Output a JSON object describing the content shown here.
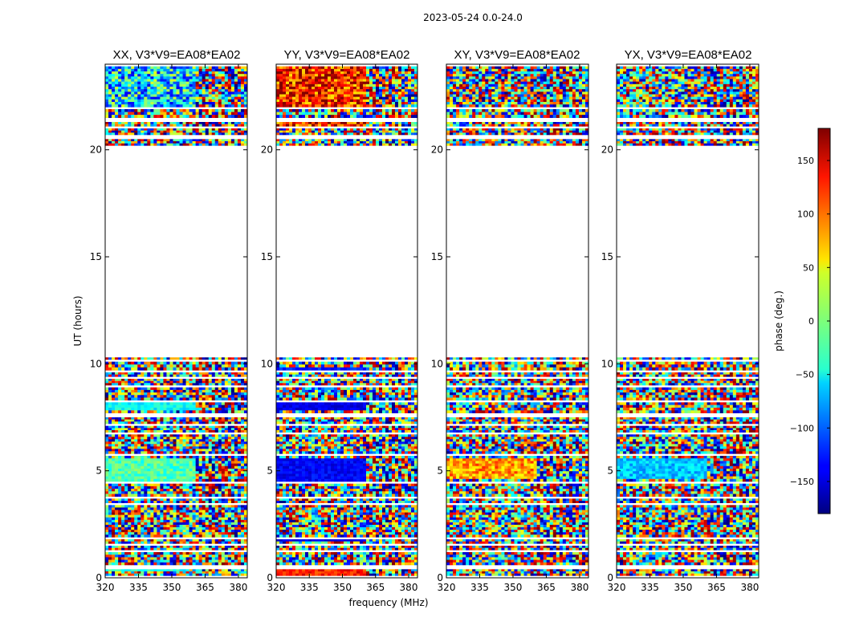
{
  "figure": {
    "suptitle": "2023-05-24 0.0-24.0"
  },
  "chart_data": {
    "type": "heatmap",
    "title": "2023-05-24 0.0-24.0",
    "xlabel": "frequency (MHz)",
    "ylabel": "UT (hours)",
    "xlim": [
      320,
      384
    ],
    "ylim": [
      0,
      24
    ],
    "x_ticks": [
      320,
      335,
      350,
      365,
      380
    ],
    "y_ticks": [
      0,
      5,
      10,
      15,
      20
    ],
    "panels": [
      {
        "title": "XX, V3*V9=EA08*EA02",
        "pol": "XX"
      },
      {
        "title": "YY, V3*V9=EA08*EA02",
        "pol": "YY"
      },
      {
        "title": "XY, V3*V9=EA08*EA02",
        "pol": "XY"
      },
      {
        "title": "YX, V3*V9=EA08*EA02",
        "pol": "YX"
      }
    ],
    "colorbar": {
      "label": "phase (deg.)",
      "range": [
        -180,
        180
      ],
      "ticks": [
        150,
        100,
        50,
        0,
        -50,
        -100,
        -150
      ],
      "colormap": "jet"
    },
    "data_segments_ut": [
      [
        0.1,
        0.4
      ],
      [
        0.6,
        1.2
      ],
      [
        1.3,
        1.5
      ],
      [
        1.6,
        1.8
      ],
      [
        1.9,
        3.4
      ],
      [
        3.5,
        3.7
      ],
      [
        3.8,
        4.4
      ],
      [
        4.5,
        5.7
      ],
      [
        5.8,
        6.7
      ],
      [
        6.8,
        7.1
      ],
      [
        7.2,
        7.5
      ],
      [
        7.7,
        8.2
      ],
      [
        8.3,
        8.9
      ],
      [
        9.0,
        9.3
      ],
      [
        9.4,
        9.6
      ],
      [
        9.7,
        10.1
      ],
      [
        10.2,
        10.3
      ],
      [
        20.2,
        20.5
      ],
      [
        20.7,
        21.0
      ],
      [
        21.1,
        21.3
      ],
      [
        21.5,
        21.9
      ],
      [
        22.0,
        23.9
      ]
    ],
    "gap_ut": [
      10.3,
      20.2
    ]
  }
}
